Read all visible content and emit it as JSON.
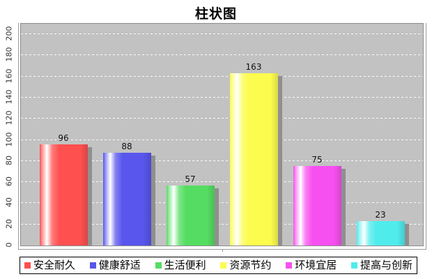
{
  "chart_data": {
    "type": "bar",
    "title": "柱状图",
    "categories": [
      "安全耐久",
      "健康舒适",
      "生活便利",
      "资源节约",
      "环境宜居",
      "提高与创新"
    ],
    "values": [
      96,
      88,
      57,
      163,
      75,
      23
    ],
    "value_labels": [
      "96",
      "88",
      "57",
      "163",
      "75",
      "23"
    ],
    "colors": [
      "#ff5050",
      "#5856ec",
      "#55dd62",
      "#fcfc4f",
      "#f750f0",
      "#50ecec"
    ],
    "xlabel": "",
    "ylabel": "",
    "ylim": [
      0,
      200
    ],
    "ytick_step": 20,
    "yticks": [
      "0",
      "20",
      "40",
      "60",
      "80",
      "100",
      "120",
      "140",
      "160",
      "180",
      "200"
    ],
    "grid": "horizontal-dashed-white",
    "plot_background": "#c2c2c2",
    "legend_position": "bottom",
    "bar_label_color": "#111111",
    "title_color": "#000000"
  }
}
